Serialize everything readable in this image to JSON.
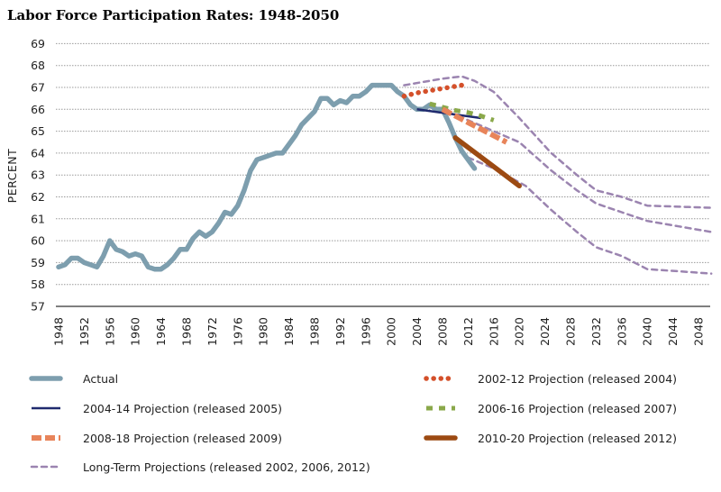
{
  "chart_data": {
    "type": "line",
    "title": "Labor Force Participation Rates: 1948-2050",
    "xlabel": "",
    "ylabel": "PERCENT",
    "xlim": [
      1948,
      2050
    ],
    "ylim": [
      57,
      69
    ],
    "grid": true,
    "legend_position": "bottom",
    "y_ticks": [
      "57",
      "58",
      "59",
      "60",
      "61",
      "62",
      "63",
      "64",
      "65",
      "66",
      "67",
      "68",
      "69"
    ],
    "x_ticks": [
      "1948",
      "1952",
      "1956",
      "1960",
      "1964",
      "1968",
      "1972",
      "1976",
      "1980",
      "1984",
      "1988",
      "1992",
      "1996",
      "2000",
      "2004",
      "2008",
      "2012",
      "2016",
      "2020",
      "2024",
      "2028",
      "2032",
      "2036",
      "2040",
      "2044",
      "2048"
    ],
    "series": [
      {
        "id": "lt2002",
        "name": "Long-Term Projections (released 2002, 2006, 2012)",
        "color": "#9b84b0",
        "style": "dashed-thin",
        "points": [
          [
            2002,
            67.1
          ],
          [
            2005,
            67.25
          ],
          [
            2008,
            67.4
          ],
          [
            2011,
            67.5
          ],
          [
            2013,
            67.3
          ],
          [
            2016,
            66.8
          ],
          [
            2020,
            65.6
          ],
          [
            2025,
            64.0
          ],
          [
            2029,
            63.0
          ],
          [
            2032,
            62.3
          ],
          [
            2036,
            62.0
          ],
          [
            2040,
            61.6
          ],
          [
            2045,
            61.55
          ],
          [
            2050,
            61.5
          ]
        ]
      },
      {
        "id": "lt2006",
        "name": "Long-Term 2006",
        "color": "#9b84b0",
        "style": "dashed-thin",
        "points": [
          [
            2006,
            66.1
          ],
          [
            2009,
            65.85
          ],
          [
            2012,
            65.5
          ],
          [
            2016,
            65.0
          ],
          [
            2020,
            64.5
          ],
          [
            2025,
            63.2
          ],
          [
            2029,
            62.3
          ],
          [
            2032,
            61.7
          ],
          [
            2036,
            61.3
          ],
          [
            2040,
            60.9
          ],
          [
            2045,
            60.65
          ],
          [
            2050,
            60.4
          ]
        ]
      },
      {
        "id": "lt2012",
        "name": "Long-Term 2012",
        "color": "#9b84b0",
        "style": "dashed-thin",
        "points": [
          [
            2012,
            63.8
          ],
          [
            2016,
            63.3
          ],
          [
            2021,
            62.5
          ],
          [
            2025,
            61.4
          ],
          [
            2029,
            60.4
          ],
          [
            2032,
            59.7
          ],
          [
            2036,
            59.3
          ],
          [
            2040,
            58.7
          ],
          [
            2045,
            58.6
          ],
          [
            2050,
            58.5
          ]
        ]
      },
      {
        "id": "actual",
        "name": "Actual",
        "color": "#7d9eae",
        "style": "solid-thick",
        "points": [
          [
            1948,
            58.8
          ],
          [
            1949,
            58.9
          ],
          [
            1950,
            59.2
          ],
          [
            1951,
            59.2
          ],
          [
            1952,
            59.0
          ],
          [
            1953,
            58.9
          ],
          [
            1954,
            58.8
          ],
          [
            1955,
            59.3
          ],
          [
            1956,
            60.0
          ],
          [
            1957,
            59.6
          ],
          [
            1958,
            59.5
          ],
          [
            1959,
            59.3
          ],
          [
            1960,
            59.4
          ],
          [
            1961,
            59.3
          ],
          [
            1962,
            58.8
          ],
          [
            1963,
            58.7
          ],
          [
            1964,
            58.7
          ],
          [
            1965,
            58.9
          ],
          [
            1966,
            59.2
          ],
          [
            1967,
            59.6
          ],
          [
            1968,
            59.6
          ],
          [
            1969,
            60.1
          ],
          [
            1970,
            60.4
          ],
          [
            1971,
            60.2
          ],
          [
            1972,
            60.4
          ],
          [
            1973,
            60.8
          ],
          [
            1974,
            61.3
          ],
          [
            1975,
            61.2
          ],
          [
            1976,
            61.6
          ],
          [
            1977,
            62.3
          ],
          [
            1978,
            63.2
          ],
          [
            1979,
            63.7
          ],
          [
            1980,
            63.8
          ],
          [
            1981,
            63.9
          ],
          [
            1982,
            64.0
          ],
          [
            1983,
            64.0
          ],
          [
            1984,
            64.4
          ],
          [
            1985,
            64.8
          ],
          [
            1986,
            65.3
          ],
          [
            1987,
            65.6
          ],
          [
            1988,
            65.9
          ],
          [
            1989,
            66.5
          ],
          [
            1990,
            66.5
          ],
          [
            1991,
            66.2
          ],
          [
            1992,
            66.4
          ],
          [
            1993,
            66.3
          ],
          [
            1994,
            66.6
          ],
          [
            1995,
            66.6
          ],
          [
            1996,
            66.8
          ],
          [
            1997,
            67.1
          ],
          [
            1998,
            67.1
          ],
          [
            1999,
            67.1
          ],
          [
            2000,
            67.1
          ],
          [
            2001,
            66.8
          ],
          [
            2002,
            66.6
          ],
          [
            2003,
            66.2
          ],
          [
            2004,
            66.0
          ],
          [
            2005,
            66.0
          ],
          [
            2006,
            66.2
          ],
          [
            2007,
            66.0
          ],
          [
            2008,
            66.0
          ],
          [
            2009,
            65.4
          ],
          [
            2010,
            64.7
          ],
          [
            2011,
            64.1
          ],
          [
            2012,
            63.7
          ],
          [
            2013,
            63.3
          ]
        ]
      },
      {
        "id": "p2002",
        "name": "2002-12 Projection (released 2004)",
        "color": "#d4502a",
        "style": "dotted",
        "points": [
          [
            2002,
            66.6
          ],
          [
            2004,
            66.75
          ],
          [
            2006,
            66.85
          ],
          [
            2008,
            66.95
          ],
          [
            2010,
            67.05
          ],
          [
            2012,
            67.15
          ]
        ]
      },
      {
        "id": "p2004",
        "name": "2004-14 Projection (released 2005)",
        "color": "#1f2a6e",
        "style": "solid-thin",
        "points": [
          [
            2004,
            66.0
          ],
          [
            2014,
            65.6
          ]
        ]
      },
      {
        "id": "p2006",
        "name": "2006-16 Projection (released 2007)",
        "color": "#8aa84a",
        "style": "dashed-green",
        "points": [
          [
            2006,
            66.25
          ],
          [
            2008,
            66.1
          ],
          [
            2010,
            65.95
          ],
          [
            2012,
            65.85
          ],
          [
            2014,
            65.7
          ],
          [
            2016,
            65.5
          ]
        ]
      },
      {
        "id": "p2008",
        "name": "2008-18 Projection (released 2009)",
        "color": "#e8845a",
        "style": "dashed-thick",
        "points": [
          [
            2008,
            66.0
          ],
          [
            2010,
            65.7
          ],
          [
            2012,
            65.4
          ],
          [
            2014,
            65.1
          ],
          [
            2016,
            64.8
          ],
          [
            2018,
            64.5
          ]
        ]
      },
      {
        "id": "p2010",
        "name": "2010-20 Projection (released 2012)",
        "color": "#9c4a12",
        "style": "solid-thick",
        "points": [
          [
            2010,
            64.7
          ],
          [
            2015,
            63.6
          ],
          [
            2020,
            62.5
          ]
        ]
      }
    ],
    "legend": [
      {
        "id": "actual",
        "label": "Actual",
        "color": "#7d9eae",
        "style": "solid-thick"
      },
      {
        "id": "p2002",
        "label": "2002-12 Projection (released 2004)",
        "color": "#d4502a",
        "style": "dotted"
      },
      {
        "id": "p2004",
        "label": "2004-14 Projection (released 2005)",
        "color": "#1f2a6e",
        "style": "solid-thin"
      },
      {
        "id": "p2006",
        "label": "2006-16 Projection (released 2007)",
        "color": "#8aa84a",
        "style": "dashed-green"
      },
      {
        "id": "p2008",
        "label": "2008-18 Projection (released 2009)",
        "color": "#e8845a",
        "style": "dashed-thick"
      },
      {
        "id": "p2010",
        "label": "2010-20 Projection (released 2012)",
        "color": "#9c4a12",
        "style": "solid-thick"
      },
      {
        "id": "lt",
        "label": "Long-Term Projections (released 2002, 2006, 2012)",
        "color": "#9b84b0",
        "style": "dashed-thin"
      }
    ]
  }
}
